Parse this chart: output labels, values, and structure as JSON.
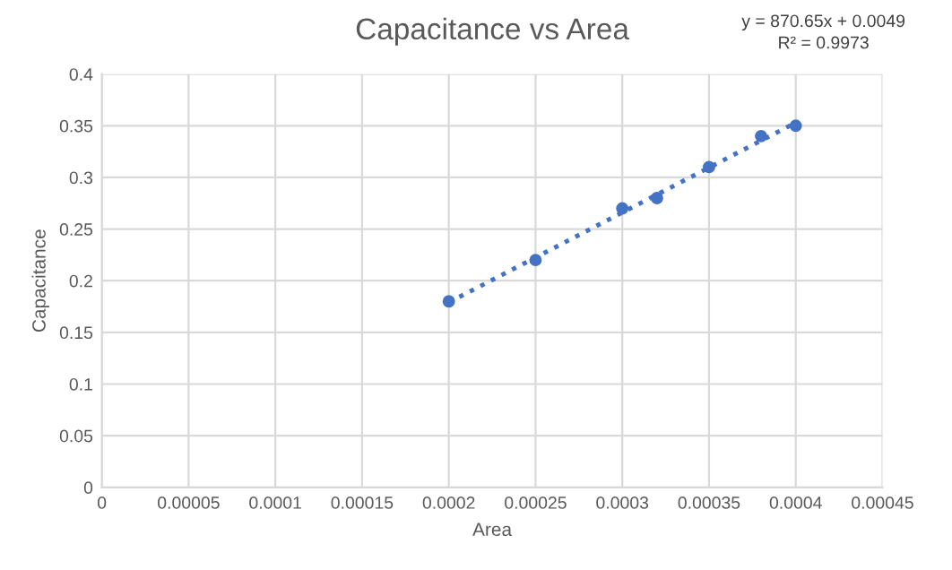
{
  "chart_data": {
    "type": "scatter",
    "title": "Capacitance vs Area",
    "xlabel": "Area",
    "ylabel": "Capacitance",
    "annotations": [
      "y = 870.65x + 0.0049",
      "R² = 0.9973"
    ],
    "series": [
      {
        "color": "#4472c4",
        "x": [
          0.0002,
          0.00025,
          0.0003,
          0.00032,
          0.00035,
          0.00038,
          0.0004
        ],
        "values": [
          0.18,
          0.22,
          0.27,
          0.28,
          0.31,
          0.34,
          0.35
        ],
        "marker": "circle"
      },
      {
        "type": "line",
        "color": "#4472c4",
        "x": [
          0.0002,
          0.0004
        ],
        "values": [
          0.179,
          0.353
        ],
        "line_style": "dotted",
        "marker": "none"
      }
    ],
    "xlim": [
      0,
      0.00045
    ],
    "xticks": [
      {
        "value": 0,
        "label": "0"
      },
      {
        "value": 5e-05,
        "label": "0.00005"
      },
      {
        "value": 0.0001,
        "label": "0.0001"
      },
      {
        "value": 0.00015,
        "label": "0.00015"
      },
      {
        "value": 0.0002,
        "label": "0.0002"
      },
      {
        "value": 0.00025,
        "label": "0.00025"
      },
      {
        "value": 0.0003,
        "label": "0.0003"
      },
      {
        "value": 0.00035,
        "label": "0.00035"
      },
      {
        "value": 0.0004,
        "label": "0.0004"
      },
      {
        "value": 0.00045,
        "label": "0.00045"
      }
    ],
    "ylim": [
      0,
      0.4
    ],
    "yticks": [
      0,
      0.05,
      0.1,
      0.15,
      0.2,
      0.25,
      0.3,
      0.35,
      0.4
    ],
    "grid": true,
    "legend": false
  }
}
